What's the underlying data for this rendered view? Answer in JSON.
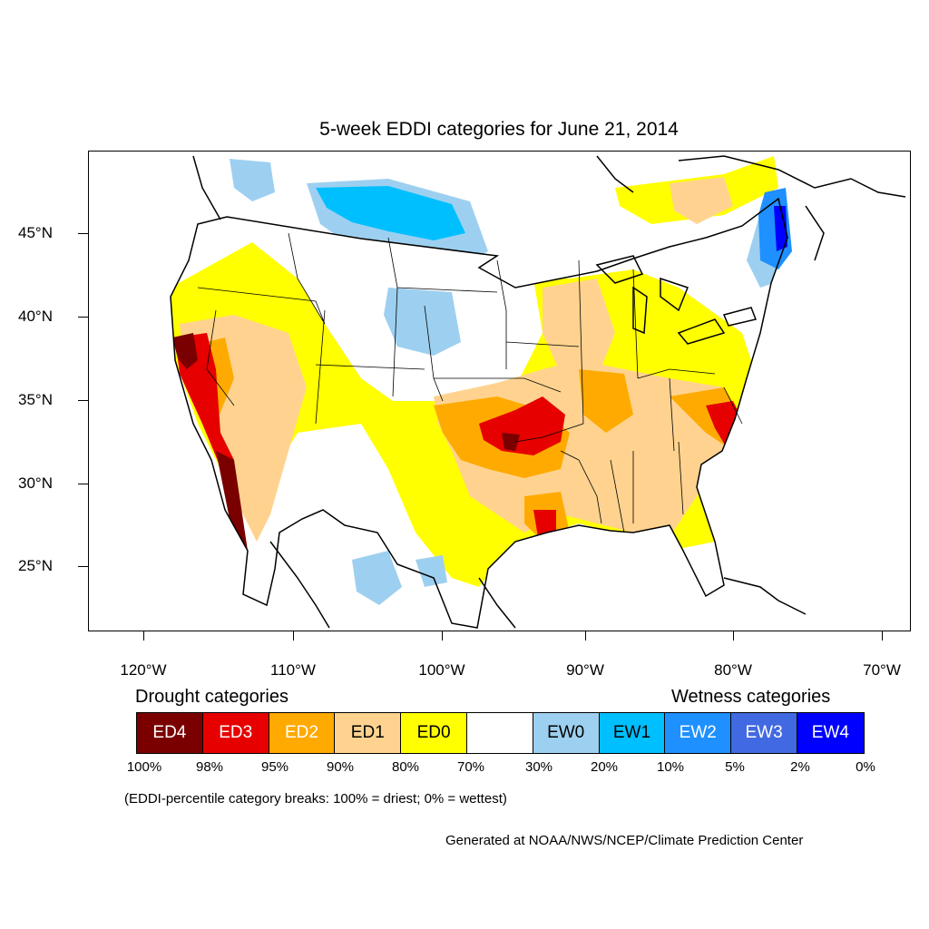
{
  "title": "5-week EDDI categories for June 21, 2014",
  "map": {
    "lat_labels": [
      "45°N",
      "40°N",
      "35°N",
      "30°N",
      "25°N"
    ],
    "lon_labels": [
      "120°W",
      "110°W",
      "100°W",
      "90°W",
      "80°W",
      "70°W"
    ],
    "colors": {
      "ED4": "#7a0000",
      "ED3": "#e60000",
      "ED2": "#ffaa00",
      "ED1": "#ffd38f",
      "ED0": "#ffff00",
      "neutral": "#ffffff",
      "EW0": "#9dd0f0",
      "EW1": "#00bfff",
      "EW2": "#1e90ff",
      "EW3": "#4169e1",
      "EW4": "#0000ff"
    },
    "features": {
      "land_outline": "united-states-outline-map",
      "state_borders": "state-border-lines",
      "great_lakes": "great-lakes-outline"
    }
  },
  "legend": {
    "drought_heading": "Drought categories",
    "wetness_heading": "Wetness categories",
    "categories": [
      {
        "label": "ED4",
        "color": "#7a0000",
        "text_color": "#ffffff"
      },
      {
        "label": "ED3",
        "color": "#e60000",
        "text_color": "#ffffff"
      },
      {
        "label": "ED2",
        "color": "#ffaa00",
        "text_color": "#ffffff"
      },
      {
        "label": "ED1",
        "color": "#ffd38f",
        "text_color": "#000000"
      },
      {
        "label": "ED0",
        "color": "#ffff00",
        "text_color": "#000000"
      },
      {
        "label": "",
        "color": "#ffffff",
        "text_color": "#000000"
      },
      {
        "label": "EW0",
        "color": "#9dd0f0",
        "text_color": "#000000"
      },
      {
        "label": "EW1",
        "color": "#00bfff",
        "text_color": "#000000"
      },
      {
        "label": "EW2",
        "color": "#1e90ff",
        "text_color": "#ffffff"
      },
      {
        "label": "EW3",
        "color": "#4169e1",
        "text_color": "#ffffff"
      },
      {
        "label": "EW4",
        "color": "#0000ff",
        "text_color": "#ffffff"
      }
    ],
    "percent_breaks": [
      "100%",
      "98%",
      "95%",
      "90%",
      "80%",
      "70%",
      "30%",
      "20%",
      "10%",
      "5%",
      "2%",
      "0%"
    ]
  },
  "note": "(EDDI-percentile category breaks: 100% = driest; 0% = wettest)",
  "credit": "Generated at NOAA/NWS/NCEP/Climate Prediction Center"
}
